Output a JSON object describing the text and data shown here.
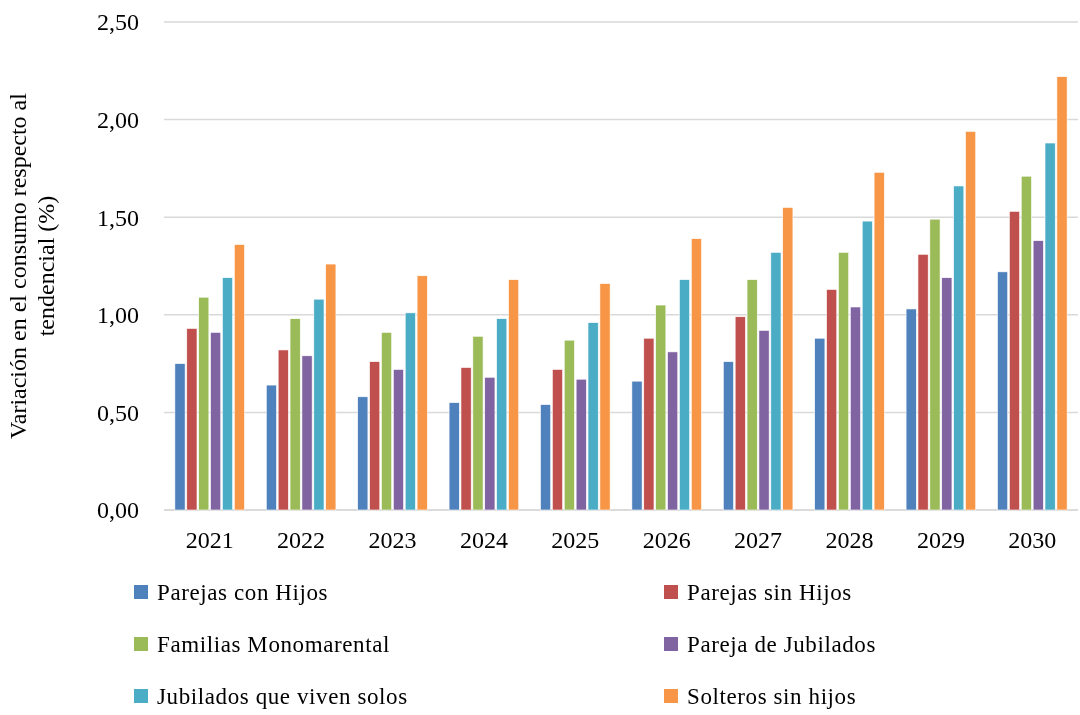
{
  "chart_data": {
    "type": "bar",
    "ylabel": "Variación en el consumo respecto al tendencial (%)",
    "categories": [
      "2021",
      "2022",
      "2023",
      "2024",
      "2025",
      "2026",
      "2027",
      "2028",
      "2029",
      "2030"
    ],
    "series": [
      {
        "name": "Parejas con Hijos",
        "color": "#4f81bd",
        "values": [
          0.75,
          0.64,
          0.58,
          0.55,
          0.54,
          0.66,
          0.76,
          0.88,
          1.03,
          1.22
        ]
      },
      {
        "name": "Parejas sin Hijos",
        "color": "#c0504d",
        "values": [
          0.93,
          0.82,
          0.76,
          0.73,
          0.72,
          0.88,
          0.99,
          1.13,
          1.31,
          1.53
        ]
      },
      {
        "name": "Familias Monomarental",
        "color": "#9bbb59",
        "values": [
          1.09,
          0.98,
          0.91,
          0.89,
          0.87,
          1.05,
          1.18,
          1.32,
          1.49,
          1.71
        ]
      },
      {
        "name": "Pareja de Jubilados",
        "color": "#8064a2",
        "values": [
          0.91,
          0.79,
          0.72,
          0.68,
          0.67,
          0.81,
          0.92,
          1.04,
          1.19,
          1.38
        ]
      },
      {
        "name": "Jubilados que viven solos",
        "color": "#4bacc6",
        "values": [
          1.19,
          1.08,
          1.01,
          0.98,
          0.96,
          1.18,
          1.32,
          1.48,
          1.66,
          1.88
        ]
      },
      {
        "name": "Solteros sin hijos",
        "color": "#f79646",
        "values": [
          1.36,
          1.26,
          1.2,
          1.18,
          1.16,
          1.39,
          1.55,
          1.73,
          1.94,
          2.22
        ]
      }
    ],
    "ylim": [
      0,
      2.5
    ],
    "yticks": [
      {
        "value": 0,
        "label": "0,00"
      },
      {
        "value": 0.5,
        "label": "0,50"
      },
      {
        "value": 1,
        "label": "1,00"
      },
      {
        "value": 1.5,
        "label": "1,50"
      },
      {
        "value": 2,
        "label": "2,00"
      },
      {
        "value": 2.5,
        "label": "2,50"
      }
    ],
    "grid": "y",
    "legend": "bottom"
  }
}
